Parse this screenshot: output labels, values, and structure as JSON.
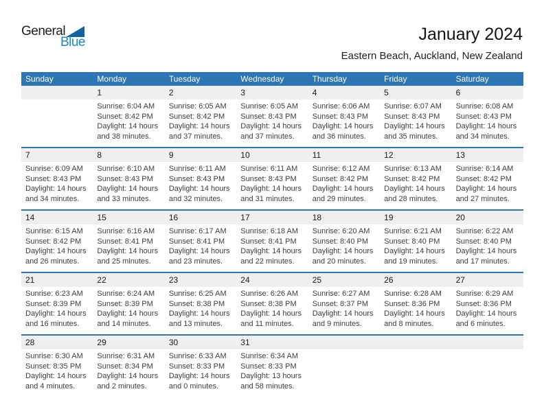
{
  "logo": {
    "general": "General",
    "blue": "Blue"
  },
  "header": {
    "title": "January 2024",
    "subtitle": "Eastern Beach, Auckland, New Zealand"
  },
  "colors": {
    "header_bg": "#2E75B6",
    "separator": "#2E75B6",
    "stripe": "#EFEFEF",
    "logo_blue": "#1787CC",
    "logo_triangle": "#14639E"
  },
  "calendar": {
    "weekdays": [
      "Sunday",
      "Monday",
      "Tuesday",
      "Wednesday",
      "Thursday",
      "Friday",
      "Saturday"
    ],
    "weeks": [
      [
        null,
        {
          "day": "1",
          "sunrise": "Sunrise: 6:04 AM",
          "sunset": "Sunset: 8:42 PM",
          "daylight": "Daylight: 14 hours and 38 minutes."
        },
        {
          "day": "2",
          "sunrise": "Sunrise: 6:05 AM",
          "sunset": "Sunset: 8:42 PM",
          "daylight": "Daylight: 14 hours and 37 minutes."
        },
        {
          "day": "3",
          "sunrise": "Sunrise: 6:05 AM",
          "sunset": "Sunset: 8:43 PM",
          "daylight": "Daylight: 14 hours and 37 minutes."
        },
        {
          "day": "4",
          "sunrise": "Sunrise: 6:06 AM",
          "sunset": "Sunset: 8:43 PM",
          "daylight": "Daylight: 14 hours and 36 minutes."
        },
        {
          "day": "5",
          "sunrise": "Sunrise: 6:07 AM",
          "sunset": "Sunset: 8:43 PM",
          "daylight": "Daylight: 14 hours and 35 minutes."
        },
        {
          "day": "6",
          "sunrise": "Sunrise: 6:08 AM",
          "sunset": "Sunset: 8:43 PM",
          "daylight": "Daylight: 14 hours and 34 minutes."
        }
      ],
      [
        {
          "day": "7",
          "sunrise": "Sunrise: 6:09 AM",
          "sunset": "Sunset: 8:43 PM",
          "daylight": "Daylight: 14 hours and 34 minutes."
        },
        {
          "day": "8",
          "sunrise": "Sunrise: 6:10 AM",
          "sunset": "Sunset: 8:43 PM",
          "daylight": "Daylight: 14 hours and 33 minutes."
        },
        {
          "day": "9",
          "sunrise": "Sunrise: 6:11 AM",
          "sunset": "Sunset: 8:43 PM",
          "daylight": "Daylight: 14 hours and 32 minutes."
        },
        {
          "day": "10",
          "sunrise": "Sunrise: 6:11 AM",
          "sunset": "Sunset: 8:43 PM",
          "daylight": "Daylight: 14 hours and 31 minutes."
        },
        {
          "day": "11",
          "sunrise": "Sunrise: 6:12 AM",
          "sunset": "Sunset: 8:42 PM",
          "daylight": "Daylight: 14 hours and 29 minutes."
        },
        {
          "day": "12",
          "sunrise": "Sunrise: 6:13 AM",
          "sunset": "Sunset: 8:42 PM",
          "daylight": "Daylight: 14 hours and 28 minutes."
        },
        {
          "day": "13",
          "sunrise": "Sunrise: 6:14 AM",
          "sunset": "Sunset: 8:42 PM",
          "daylight": "Daylight: 14 hours and 27 minutes."
        }
      ],
      [
        {
          "day": "14",
          "sunrise": "Sunrise: 6:15 AM",
          "sunset": "Sunset: 8:42 PM",
          "daylight": "Daylight: 14 hours and 26 minutes."
        },
        {
          "day": "15",
          "sunrise": "Sunrise: 6:16 AM",
          "sunset": "Sunset: 8:41 PM",
          "daylight": "Daylight: 14 hours and 25 minutes."
        },
        {
          "day": "16",
          "sunrise": "Sunrise: 6:17 AM",
          "sunset": "Sunset: 8:41 PM",
          "daylight": "Daylight: 14 hours and 23 minutes."
        },
        {
          "day": "17",
          "sunrise": "Sunrise: 6:18 AM",
          "sunset": "Sunset: 8:41 PM",
          "daylight": "Daylight: 14 hours and 22 minutes."
        },
        {
          "day": "18",
          "sunrise": "Sunrise: 6:20 AM",
          "sunset": "Sunset: 8:40 PM",
          "daylight": "Daylight: 14 hours and 20 minutes."
        },
        {
          "day": "19",
          "sunrise": "Sunrise: 6:21 AM",
          "sunset": "Sunset: 8:40 PM",
          "daylight": "Daylight: 14 hours and 19 minutes."
        },
        {
          "day": "20",
          "sunrise": "Sunrise: 6:22 AM",
          "sunset": "Sunset: 8:40 PM",
          "daylight": "Daylight: 14 hours and 17 minutes."
        }
      ],
      [
        {
          "day": "21",
          "sunrise": "Sunrise: 6:23 AM",
          "sunset": "Sunset: 8:39 PM",
          "daylight": "Daylight: 14 hours and 16 minutes."
        },
        {
          "day": "22",
          "sunrise": "Sunrise: 6:24 AM",
          "sunset": "Sunset: 8:39 PM",
          "daylight": "Daylight: 14 hours and 14 minutes."
        },
        {
          "day": "23",
          "sunrise": "Sunrise: 6:25 AM",
          "sunset": "Sunset: 8:38 PM",
          "daylight": "Daylight: 14 hours and 13 minutes."
        },
        {
          "day": "24",
          "sunrise": "Sunrise: 6:26 AM",
          "sunset": "Sunset: 8:38 PM",
          "daylight": "Daylight: 14 hours and 11 minutes."
        },
        {
          "day": "25",
          "sunrise": "Sunrise: 6:27 AM",
          "sunset": "Sunset: 8:37 PM",
          "daylight": "Daylight: 14 hours and 9 minutes."
        },
        {
          "day": "26",
          "sunrise": "Sunrise: 6:28 AM",
          "sunset": "Sunset: 8:36 PM",
          "daylight": "Daylight: 14 hours and 8 minutes."
        },
        {
          "day": "27",
          "sunrise": "Sunrise: 6:29 AM",
          "sunset": "Sunset: 8:36 PM",
          "daylight": "Daylight: 14 hours and 6 minutes."
        }
      ],
      [
        {
          "day": "28",
          "sunrise": "Sunrise: 6:30 AM",
          "sunset": "Sunset: 8:35 PM",
          "daylight": "Daylight: 14 hours and 4 minutes."
        },
        {
          "day": "29",
          "sunrise": "Sunrise: 6:31 AM",
          "sunset": "Sunset: 8:34 PM",
          "daylight": "Daylight: 14 hours and 2 minutes."
        },
        {
          "day": "30",
          "sunrise": "Sunrise: 6:33 AM",
          "sunset": "Sunset: 8:33 PM",
          "daylight": "Daylight: 14 hours and 0 minutes."
        },
        {
          "day": "31",
          "sunrise": "Sunrise: 6:34 AM",
          "sunset": "Sunset: 8:33 PM",
          "daylight": "Daylight: 13 hours and 58 minutes."
        },
        null,
        null,
        null
      ]
    ]
  }
}
